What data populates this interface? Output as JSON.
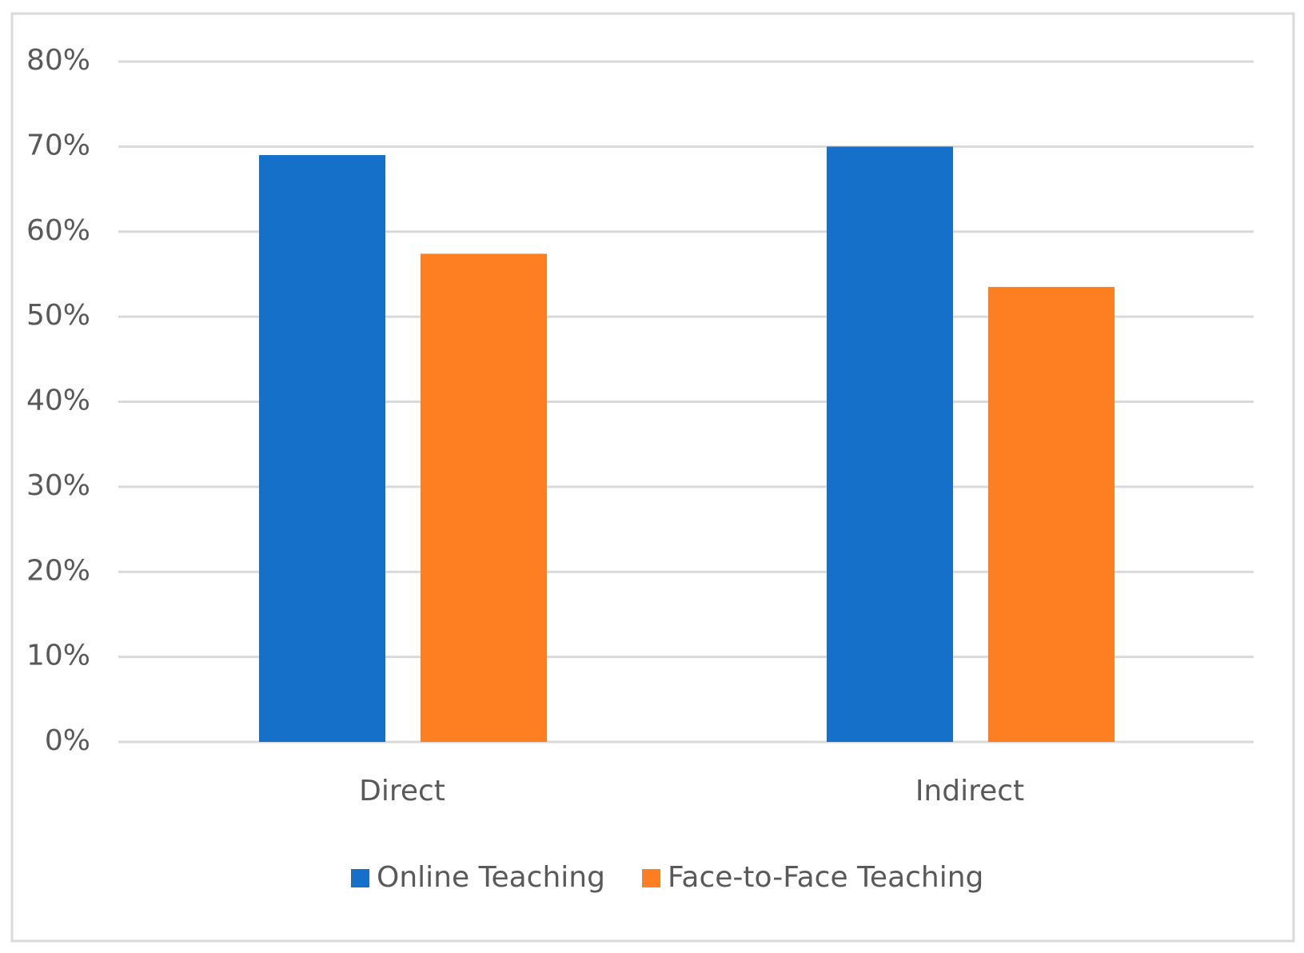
{
  "chart_data": {
    "type": "bar",
    "categories": [
      "Direct",
      "Indirect"
    ],
    "series": [
      {
        "name": "Online Teaching",
        "color": "#1570c9",
        "values": [
          69,
          70
        ]
      },
      {
        "name": "Face-to-Face Teaching",
        "color": "#fd7f22",
        "values": [
          57.4,
          53.5
        ]
      }
    ],
    "ylim": [
      0,
      80
    ],
    "yticks": [
      {
        "value": 0,
        "label": "0%"
      },
      {
        "value": 10,
        "label": "10%"
      },
      {
        "value": 20,
        "label": "20%"
      },
      {
        "value": 30,
        "label": "30%"
      },
      {
        "value": 40,
        "label": "40%"
      },
      {
        "value": 50,
        "label": "50%"
      },
      {
        "value": 60,
        "label": "60%"
      },
      {
        "value": 70,
        "label": "70%"
      },
      {
        "value": 80,
        "label": "80%"
      }
    ],
    "grid": true,
    "legend": "bottom"
  }
}
